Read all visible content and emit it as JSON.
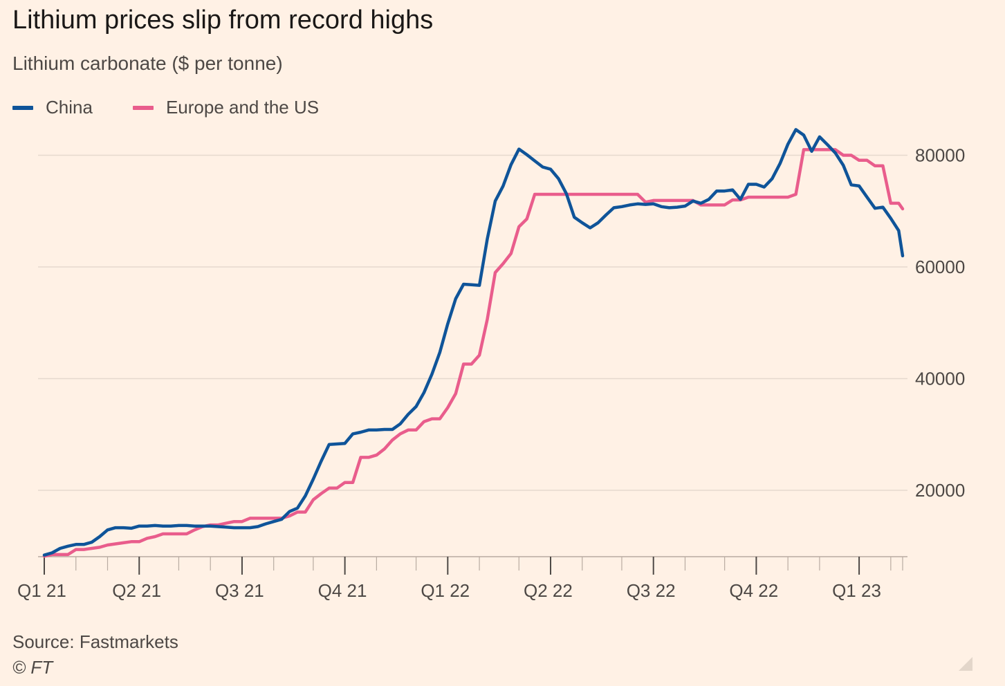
{
  "chart_data": {
    "type": "line",
    "title": "Lithium prices slip from record highs",
    "subtitle": "Lithium carbonate ($ per tonne)",
    "source": "Source: Fastmarkets",
    "copyright": "© FT",
    "legend_position": "top-left",
    "grid": true,
    "y_axis_side": "right",
    "ylim": [
      8000,
      85000
    ],
    "yticks": [
      20000,
      40000,
      60000,
      80000
    ],
    "ytick_labels": [
      "20000",
      "40000",
      "60000",
      "80000"
    ],
    "xlim": [
      0,
      108.5
    ],
    "quarter_ticks": [
      {
        "pos": 0,
        "label": "Q1 21"
      },
      {
        "pos": 12,
        "label": "Q2 21"
      },
      {
        "pos": 25,
        "label": "Q3 21"
      },
      {
        "pos": 38,
        "label": "Q4 21"
      },
      {
        "pos": 51,
        "label": "Q1 22"
      },
      {
        "pos": 64,
        "label": "Q2 22"
      },
      {
        "pos": 77,
        "label": "Q3 22"
      },
      {
        "pos": 90,
        "label": "Q4 22"
      },
      {
        "pos": 103,
        "label": "Q1 23"
      }
    ],
    "minor_ticks": [
      0,
      4,
      8,
      12,
      17,
      21,
      25,
      29,
      34,
      38,
      42,
      47,
      51,
      55,
      60,
      64,
      68,
      73,
      77,
      81,
      86,
      90,
      94,
      98,
      103,
      107,
      108.5
    ],
    "series": [
      {
        "name": "China",
        "color": "#0f5499",
        "points": [
          [
            0,
            8400
          ],
          [
            1,
            8800
          ],
          [
            2,
            9600
          ],
          [
            3,
            10000
          ],
          [
            4,
            10300
          ],
          [
            5,
            10300
          ],
          [
            6,
            10700
          ],
          [
            7,
            11700
          ],
          [
            8,
            12900
          ],
          [
            9,
            13300
          ],
          [
            10,
            13300
          ],
          [
            11,
            13200
          ],
          [
            12,
            13600
          ],
          [
            13,
            13600
          ],
          [
            14,
            13700
          ],
          [
            15,
            13600
          ],
          [
            16,
            13600
          ],
          [
            17,
            13700
          ],
          [
            18,
            13700
          ],
          [
            19,
            13600
          ],
          [
            20,
            13600
          ],
          [
            21,
            13600
          ],
          [
            22,
            13500
          ],
          [
            23,
            13400
          ],
          [
            24,
            13300
          ],
          [
            25,
            13300
          ],
          [
            26,
            13300
          ],
          [
            27,
            13500
          ],
          [
            28,
            14000
          ],
          [
            29,
            14400
          ],
          [
            30,
            14800
          ],
          [
            31,
            16200
          ],
          [
            32,
            16800
          ],
          [
            33,
            19000
          ],
          [
            34,
            22000
          ],
          [
            35,
            25200
          ],
          [
            36,
            28200
          ],
          [
            37,
            28300
          ],
          [
            38,
            28400
          ],
          [
            39,
            30100
          ],
          [
            40,
            30400
          ],
          [
            41,
            30800
          ],
          [
            42,
            30800
          ],
          [
            43,
            30900
          ],
          [
            44,
            30900
          ],
          [
            45,
            31900
          ],
          [
            46,
            33600
          ],
          [
            47,
            35000
          ],
          [
            48,
            37500
          ],
          [
            49,
            40800
          ],
          [
            50,
            44700
          ],
          [
            51,
            49800
          ],
          [
            52,
            54300
          ],
          [
            53,
            56900
          ],
          [
            54,
            56800
          ],
          [
            55,
            56700
          ],
          [
            56,
            65000
          ],
          [
            57,
            71800
          ],
          [
            58,
            74500
          ],
          [
            59,
            78300
          ],
          [
            60,
            81100
          ],
          [
            61,
            80100
          ],
          [
            62,
            79000
          ],
          [
            63,
            77900
          ],
          [
            64,
            77500
          ],
          [
            65,
            75800
          ],
          [
            66,
            73100
          ],
          [
            67,
            68900
          ],
          [
            68,
            67900
          ],
          [
            69,
            67000
          ],
          [
            70,
            67900
          ],
          [
            71,
            69300
          ],
          [
            72,
            70600
          ],
          [
            73,
            70800
          ],
          [
            74,
            71100
          ],
          [
            75,
            71300
          ],
          [
            76,
            71200
          ],
          [
            77,
            71300
          ],
          [
            78,
            70800
          ],
          [
            79,
            70600
          ],
          [
            80,
            70700
          ],
          [
            81,
            70900
          ],
          [
            82,
            71800
          ],
          [
            83,
            71400
          ],
          [
            84,
            72100
          ],
          [
            85,
            73600
          ],
          [
            86,
            73600
          ],
          [
            87,
            73800
          ],
          [
            88,
            72100
          ],
          [
            89,
            74800
          ],
          [
            90,
            74800
          ],
          [
            91,
            74300
          ],
          [
            92,
            75800
          ],
          [
            93,
            78500
          ],
          [
            94,
            82000
          ],
          [
            95,
            84600
          ],
          [
            96,
            83600
          ],
          [
            97,
            80700
          ],
          [
            98,
            83300
          ],
          [
            99,
            81900
          ],
          [
            100,
            80400
          ],
          [
            101,
            78200
          ],
          [
            102,
            74700
          ],
          [
            103,
            74500
          ],
          [
            104,
            72500
          ],
          [
            105,
            70500
          ],
          [
            106,
            70700
          ],
          [
            107,
            68700
          ],
          [
            108,
            66500
          ],
          [
            108.5,
            62000
          ]
        ]
      },
      {
        "name": "Europe and the US",
        "color": "#e95d8c",
        "points": [
          [
            0,
            8200
          ],
          [
            1,
            8500
          ],
          [
            2,
            8500
          ],
          [
            3,
            8500
          ],
          [
            4,
            9400
          ],
          [
            5,
            9400
          ],
          [
            6,
            9600
          ],
          [
            7,
            9800
          ],
          [
            8,
            10200
          ],
          [
            9,
            10400
          ],
          [
            10,
            10600
          ],
          [
            11,
            10800
          ],
          [
            12,
            10800
          ],
          [
            13,
            11400
          ],
          [
            14,
            11700
          ],
          [
            15,
            12200
          ],
          [
            16,
            12200
          ],
          [
            17,
            12200
          ],
          [
            18,
            12200
          ],
          [
            19,
            12900
          ],
          [
            20,
            13500
          ],
          [
            21,
            13800
          ],
          [
            22,
            13800
          ],
          [
            23,
            14100
          ],
          [
            24,
            14400
          ],
          [
            25,
            14400
          ],
          [
            26,
            15000
          ],
          [
            27,
            15000
          ],
          [
            28,
            15000
          ],
          [
            29,
            15000
          ],
          [
            30,
            15000
          ],
          [
            31,
            15400
          ],
          [
            32,
            16100
          ],
          [
            33,
            16100
          ],
          [
            34,
            18300
          ],
          [
            35,
            19400
          ],
          [
            36,
            20400
          ],
          [
            37,
            20400
          ],
          [
            38,
            21400
          ],
          [
            39,
            21400
          ],
          [
            40,
            25900
          ],
          [
            41,
            25900
          ],
          [
            42,
            26300
          ],
          [
            43,
            27400
          ],
          [
            44,
            29000
          ],
          [
            45,
            30100
          ],
          [
            46,
            30800
          ],
          [
            47,
            30800
          ],
          [
            48,
            32300
          ],
          [
            49,
            32800
          ],
          [
            50,
            32800
          ],
          [
            51,
            34800
          ],
          [
            52,
            37300
          ],
          [
            53,
            42600
          ],
          [
            54,
            42600
          ],
          [
            55,
            44200
          ],
          [
            56,
            50600
          ],
          [
            57,
            59000
          ],
          [
            58,
            60600
          ],
          [
            59,
            62400
          ],
          [
            60,
            67200
          ],
          [
            61,
            68600
          ],
          [
            62,
            73000
          ],
          [
            63,
            73000
          ],
          [
            64,
            73000
          ],
          [
            65,
            73000
          ],
          [
            66,
            73000
          ],
          [
            67,
            73000
          ],
          [
            68,
            73000
          ],
          [
            69,
            73000
          ],
          [
            70,
            73000
          ],
          [
            71,
            73000
          ],
          [
            72,
            73000
          ],
          [
            73,
            73000
          ],
          [
            74,
            73000
          ],
          [
            75,
            73000
          ],
          [
            76,
            71600
          ],
          [
            77,
            71900
          ],
          [
            78,
            71900
          ],
          [
            79,
            71900
          ],
          [
            80,
            71900
          ],
          [
            81,
            71900
          ],
          [
            82,
            71900
          ],
          [
            83,
            71100
          ],
          [
            84,
            71100
          ],
          [
            85,
            71100
          ],
          [
            86,
            71100
          ],
          [
            87,
            72000
          ],
          [
            88,
            72000
          ],
          [
            89,
            72500
          ],
          [
            90,
            72500
          ],
          [
            91,
            72500
          ],
          [
            92,
            72500
          ],
          [
            93,
            72500
          ],
          [
            94,
            72500
          ],
          [
            95,
            73000
          ],
          [
            96,
            81000
          ],
          [
            97,
            81000
          ],
          [
            98,
            81000
          ],
          [
            99,
            81000
          ],
          [
            100,
            81000
          ],
          [
            101,
            80000
          ],
          [
            102,
            80000
          ],
          [
            103,
            79100
          ],
          [
            104,
            79100
          ],
          [
            105,
            78100
          ],
          [
            106,
            78100
          ],
          [
            107,
            71400
          ],
          [
            108,
            71400
          ],
          [
            108.5,
            70400
          ]
        ]
      }
    ]
  }
}
